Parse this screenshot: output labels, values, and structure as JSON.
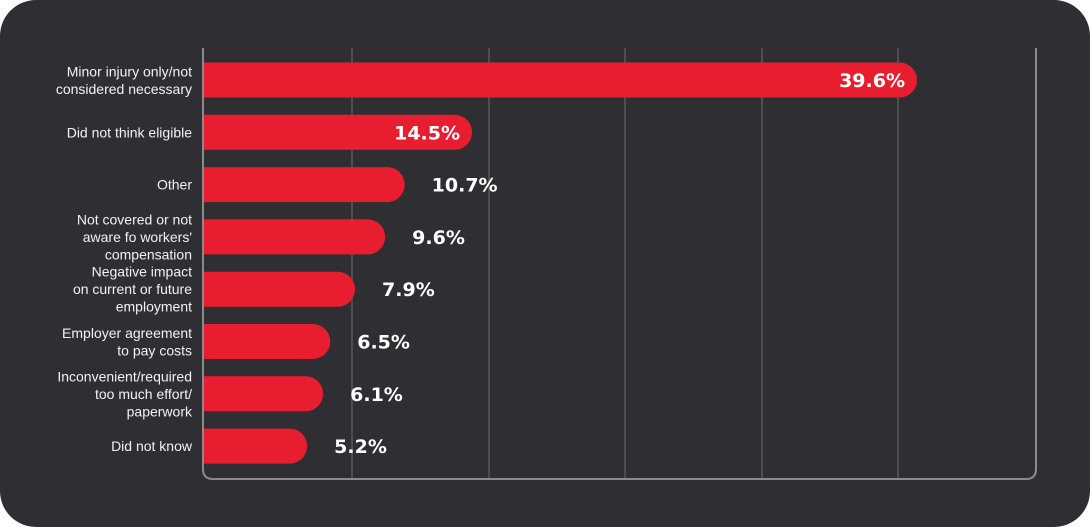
{
  "colors": {
    "background": "#2f2f33",
    "bar": "#e81e30",
    "grid": "#6b6b70",
    "axis": "#8a8a8e",
    "text": "#f2f2f2"
  },
  "chart_data": {
    "type": "bar",
    "orientation": "horizontal",
    "categories": [
      [
        "Minor injury only/not",
        "considered necessary"
      ],
      [
        "Did not think eligible"
      ],
      [
        "Other"
      ],
      [
        "Not covered or not",
        "aware fo workers'",
        "compensation"
      ],
      [
        "Negative impact",
        "on current or future",
        "employment"
      ],
      [
        "Employer agreement",
        "to pay costs"
      ],
      [
        "Inconvenient/required",
        "too much effort/",
        "paperwork"
      ],
      [
        "Did not know"
      ]
    ],
    "values": [
      39.6,
      14.5,
      10.7,
      9.6,
      7.9,
      6.5,
      6.1,
      5.2
    ],
    "value_labels": [
      "39.6%",
      "14.5%",
      "10.7%",
      "9.6%",
      "7.9%",
      "6.5%",
      "6.1%",
      "5.2%"
    ],
    "label_inside": [
      true,
      true,
      false,
      false,
      false,
      false,
      false,
      false
    ],
    "xlim": [
      0,
      48
    ],
    "grid": true,
    "legend": "none"
  }
}
